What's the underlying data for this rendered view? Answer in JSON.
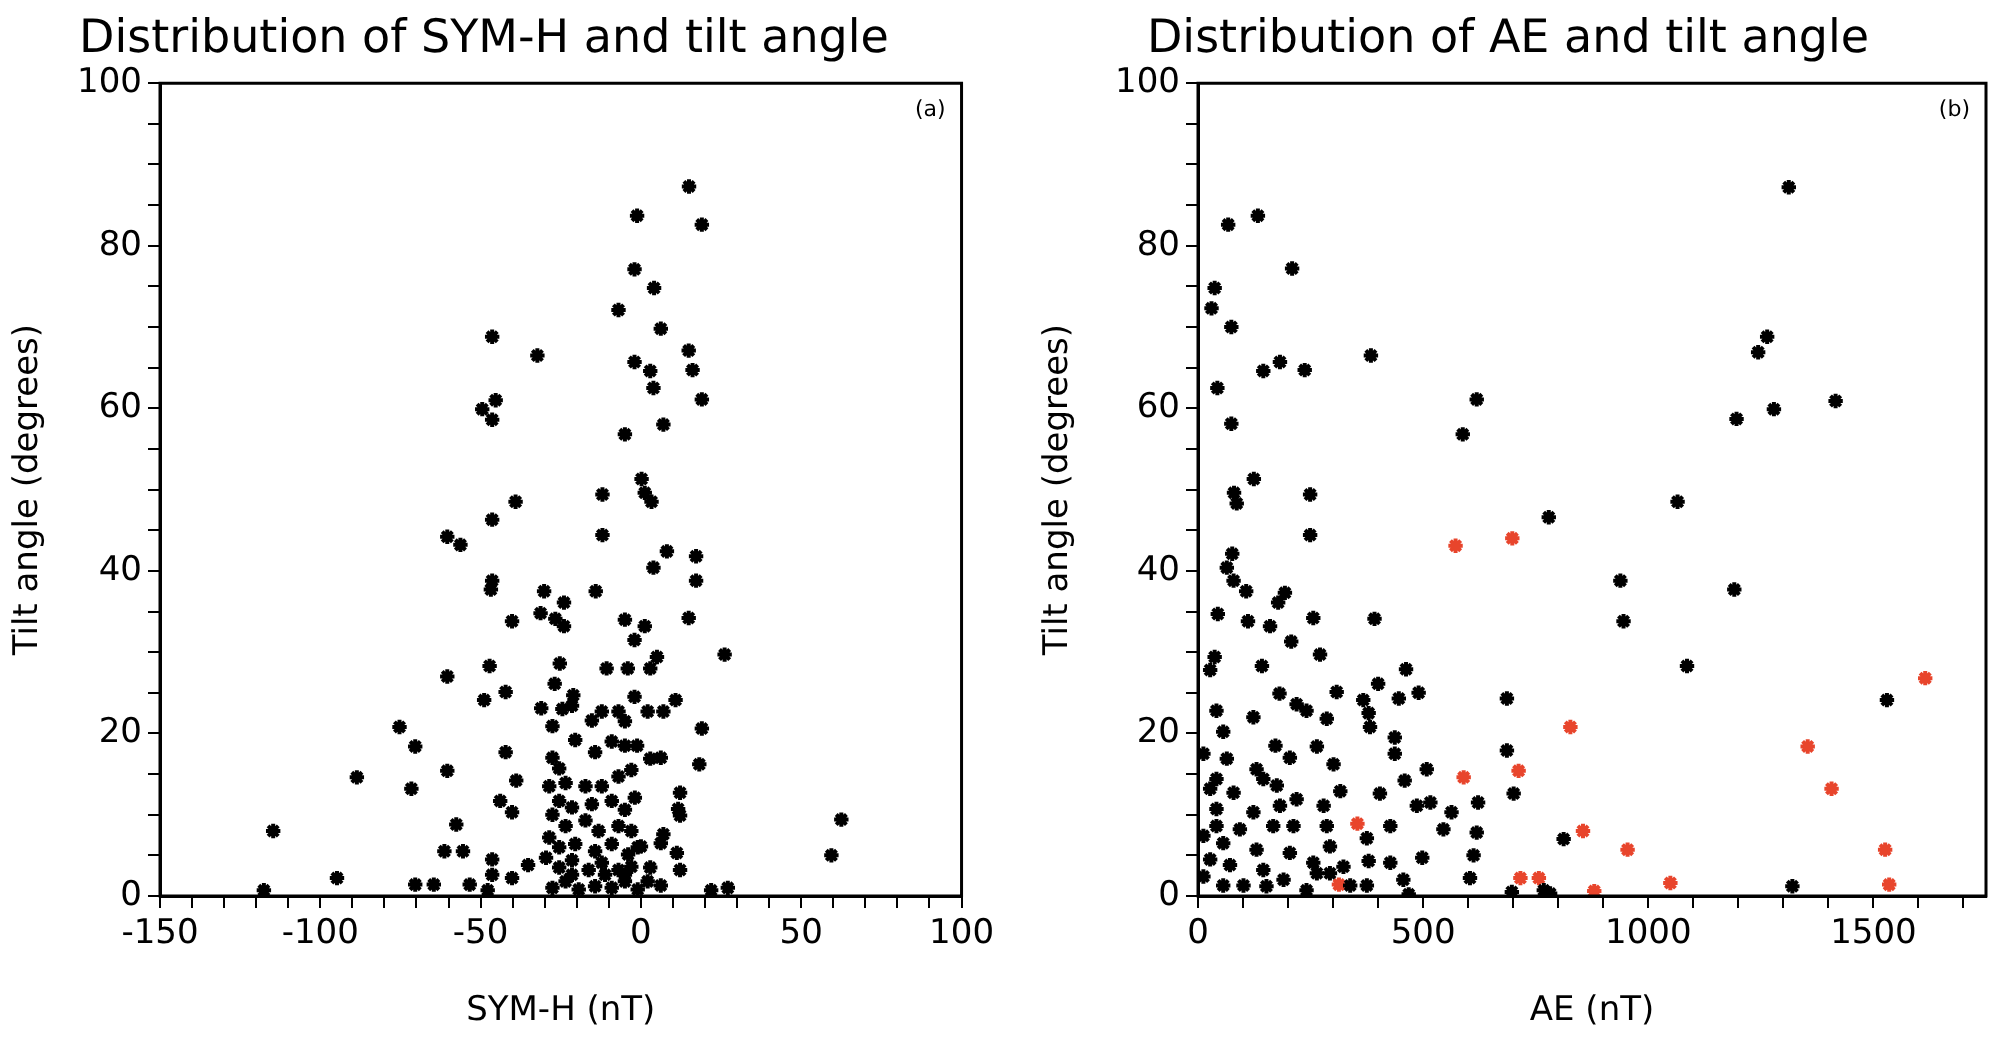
{
  "chart_data": [
    {
      "type": "scatter",
      "title": "Distribution of SYM-H and tilt angle",
      "xlabel": "SYM-H (nT)",
      "ylabel": "Tilt angle (degrees)",
      "annotations": [
        "(a)"
      ],
      "marker": "cross",
      "xlim": [
        -150,
        100
      ],
      "xticks": [
        -150,
        {
          "value": -140,
          "label": null
        },
        {
          "value": -130,
          "label": null
        },
        {
          "value": -120,
          "label": null
        },
        {
          "value": -110,
          "label": null
        },
        -100,
        {
          "value": -90,
          "label": null
        },
        {
          "value": -80,
          "label": null
        },
        {
          "value": -70,
          "label": null
        },
        {
          "value": -60,
          "label": null
        },
        -50,
        {
          "value": -40,
          "label": null
        },
        {
          "value": -30,
          "label": null
        },
        {
          "value": -20,
          "label": null
        },
        {
          "value": -10,
          "label": null
        },
        0,
        {
          "value": 10,
          "label": null
        },
        {
          "value": 20,
          "label": null
        },
        {
          "value": 30,
          "label": null
        },
        {
          "value": 40,
          "label": null
        },
        50,
        {
          "value": 60,
          "label": null
        },
        {
          "value": 70,
          "label": null
        },
        {
          "value": 80,
          "label": null
        },
        {
          "value": 90,
          "label": null
        },
        100
      ],
      "ylim": [
        0,
        100
      ],
      "yticks": [
        0,
        {
          "value": 5,
          "label": null
        },
        {
          "value": 10,
          "label": null
        },
        {
          "value": 15,
          "label": null
        },
        20,
        {
          "value": 25,
          "label": null
        },
        {
          "value": 30,
          "label": null
        },
        {
          "value": 35,
          "label": null
        },
        40,
        {
          "value": 45,
          "label": null
        },
        {
          "value": 50,
          "label": null
        },
        {
          "value": 55,
          "label": null
        },
        60,
        {
          "value": 65,
          "label": null
        },
        {
          "value": 70,
          "label": null
        },
        {
          "value": 75,
          "label": null
        },
        80,
        {
          "value": 85,
          "label": null
        },
        {
          "value": 90,
          "label": null
        },
        {
          "value": 95,
          "label": null
        },
        100
      ],
      "series": [
        {
          "color": "#000000",
          "x": [
            15,
            -1.2,
            19,
            -2,
            4.1,
            -7,
            6.2,
            -46.4,
            -32.3,
            -2,
            2.9,
            14.9,
            16.1,
            3.9,
            19,
            -45.3,
            -49.5,
            -46.4,
            7,
            -5,
            0.2,
            1.2,
            3.3,
            -12,
            -39.1,
            -46.4,
            -60.4,
            -56.3,
            -12,
            8.1,
            17.2,
            3.9,
            17.2,
            -46.4,
            -46.8,
            -30.2,
            -14.1,
            -40.2,
            -31.3,
            -26.7,
            -24,
            -24,
            -5,
            1.2,
            -2,
            5,
            14.9,
            26.1,
            -47.2,
            -25.3,
            -10.7,
            -4.1,
            2.9,
            -60.4,
            -42.2,
            -48.9,
            -26.9,
            -21.1,
            -31.1,
            -2,
            10.8,
            2.1,
            7,
            19,
            -75.3,
            -70.4,
            -42.2,
            -88.6,
            -60.4,
            -38.9,
            -71.6,
            -43.9,
            -40.2,
            -114.7,
            -57.6,
            -61.3,
            -55.5,
            -46.4,
            -46.4,
            -40.2,
            -35.2,
            -94.8,
            -117.6,
            -70.4,
            -64.6,
            -53.4,
            -47.8,
            62.5,
            59.4,
            21.9,
            27.1,
            12.2,
            11.6,
            12.2,
            7,
            6.2,
            11.2,
            12.2,
            0,
            2.9,
            6.2,
            2.9,
            6.2,
            18.2,
            -1.2,
            -27.6,
            -24.5,
            -21.5,
            -15.3,
            -12.2,
            -7,
            -5,
            -20.5,
            -14.3,
            -9.1,
            -5,
            -27.6,
            -25.5,
            -23.5,
            -17.3,
            -12.2,
            -7,
            -3,
            -28.6,
            -25.5,
            -21.5,
            -15.3,
            -9.1,
            -5,
            -1.9,
            -27.6,
            -23.5,
            -17.3,
            -13.2,
            -7,
            -3,
            -28.6,
            -25.5,
            -20.5,
            -14.3,
            -9.1,
            -4,
            -1,
            -29.6,
            -25.5,
            -21.5,
            -16.3,
            -12.2,
            -7,
            -3,
            -27.6,
            -23.5,
            -19.4,
            -14.3,
            -9.1,
            -5,
            -1,
            2.1,
            -21.5,
            -11.2,
            -5
          ],
          "values": [
            87.3,
            83.7,
            82.6,
            77.1,
            74.8,
            72.1,
            69.8,
            68.8,
            66.5,
            65.7,
            64.6,
            67.1,
            64.7,
            62.5,
            61.1,
            61,
            59.9,
            58.6,
            58,
            56.8,
            51.3,
            49.6,
            48.5,
            49.4,
            48.5,
            46.3,
            44.2,
            43.2,
            44.4,
            42.4,
            41.8,
            40.4,
            38.8,
            38.8,
            37.7,
            37.5,
            37.5,
            33.8,
            34.8,
            34.1,
            36.1,
            33.2,
            34,
            33.2,
            31.5,
            29.4,
            34.2,
            29.7,
            28.3,
            28.6,
            28,
            28,
            28,
            27,
            25.1,
            24.1,
            26.1,
            24.7,
            23.1,
            24.5,
            24.1,
            22.7,
            22.7,
            20.6,
            20.8,
            18.4,
            17.7,
            14.6,
            15.4,
            14.2,
            13.2,
            11.7,
            10.3,
            8,
            8.8,
            5.5,
            5.5,
            4.5,
            2.6,
            2.2,
            3.8,
            2.2,
            0.7,
            1.4,
            1.4,
            1.4,
            0.7,
            9.4,
            5,
            0.7,
            1,
            12.7,
            10.7,
            9.9,
            7.6,
            6.5,
            5.3,
            3.2,
            6.1,
            3.5,
            1.3,
            16.9,
            17,
            16.2,
            18.5,
            20.9,
            23,
            23.4,
            21.6,
            22.7,
            22.7,
            21.5,
            19.2,
            17.7,
            19,
            18.5,
            17,
            15.7,
            13.9,
            13.5,
            13.5,
            14.7,
            15.5,
            13.5,
            11.7,
            10.9,
            11.3,
            11.7,
            10.6,
            12.1,
            10,
            8.6,
            9.3,
            8,
            8.6,
            8,
            7.2,
            6,
            6.4,
            5.5,
            6.4,
            5.1,
            6,
            4.7,
            3.5,
            4.4,
            3.2,
            4.1,
            3.2,
            3.6,
            1,
            1.8,
            0.8,
            1.2,
            1,
            1.8,
            0.8,
            1.8,
            2.6,
            2.6,
            2.6
          ]
        }
      ]
    },
    {
      "type": "scatter",
      "title": "Distribution of AE and tilt angle",
      "xlabel": "AE (nT)",
      "ylabel": "Tilt angle (degrees)",
      "annotations": [
        "(b)"
      ],
      "marker": "cross",
      "xlim": [
        0,
        1750
      ],
      "xticks": [
        0,
        {
          "value": 100,
          "label": null
        },
        {
          "value": 200,
          "label": null
        },
        {
          "value": 300,
          "label": null
        },
        {
          "value": 400,
          "label": null
        },
        500,
        {
          "value": 600,
          "label": null
        },
        {
          "value": 700,
          "label": null
        },
        {
          "value": 800,
          "label": null
        },
        {
          "value": 900,
          "label": null
        },
        1000,
        {
          "value": 1100,
          "label": null
        },
        {
          "value": 1200,
          "label": null
        },
        {
          "value": 1300,
          "label": null
        },
        {
          "value": 1400,
          "label": null
        },
        1500,
        {
          "value": 1600,
          "label": null
        },
        {
          "value": 1700,
          "label": null
        }
      ],
      "ylim": [
        0,
        100
      ],
      "yticks": [
        0,
        {
          "value": 5,
          "label": null
        },
        {
          "value": 10,
          "label": null
        },
        {
          "value": 15,
          "label": null
        },
        20,
        {
          "value": 25,
          "label": null
        },
        {
          "value": 30,
          "label": null
        },
        {
          "value": 35,
          "label": null
        },
        40,
        {
          "value": 45,
          "label": null
        },
        {
          "value": 50,
          "label": null
        },
        {
          "value": 55,
          "label": null
        },
        60,
        {
          "value": 65,
          "label": null
        },
        {
          "value": 70,
          "label": null
        },
        {
          "value": 75,
          "label": null
        },
        80,
        {
          "value": 85,
          "label": null
        },
        {
          "value": 90,
          "label": null
        },
        {
          "value": 95,
          "label": null
        },
        100
      ],
      "series": [
        {
          "color": "#000000",
          "x": [
            1312,
            67,
            133,
            209,
            37,
            30,
            74,
            384,
            145,
            182,
            237,
            43,
            619,
            588,
            74,
            1264,
            1244,
            1416,
            1279,
            1196,
            124,
            80,
            86,
            249,
            1065,
            779,
            249,
            76,
            64,
            79,
            107,
            178,
            193,
            44,
            111,
            160,
            256,
            392,
            207,
            271,
            37,
            27,
            142,
            462,
            400,
            181,
            308,
            367,
            446,
            490,
            219,
            241,
            41,
            123,
            286,
            379,
            382,
            437,
            56,
            172,
            264,
            12,
            64,
            204,
            437,
            686,
            686,
            938,
            945,
            1191,
            1086,
            1530,
            130,
            301,
            508,
            459,
            41,
            145,
            27,
            79,
            175,
            316,
            404,
            701,
            219,
            279,
            486,
            516,
            622,
            41,
            123,
            182,
            545,
            563,
            41,
            93,
            167,
            212,
            286,
            427,
            619,
            375,
            812,
            12,
            56,
            130,
            293,
            204,
            256,
            427,
            498,
            612,
            379,
            27,
            71,
            145,
            12,
            101,
            190,
            241,
            338,
            375,
            456,
            604,
            697,
            768,
            782,
            468,
            1320,
            56,
            152,
            264,
            293,
            323
          ],
          "values": [
            87.2,
            82.6,
            83.7,
            77.2,
            74.8,
            72.3,
            70,
            66.5,
            64.6,
            65.7,
            64.7,
            62.5,
            61.1,
            56.8,
            58.1,
            68.8,
            66.9,
            60.9,
            59.9,
            58.7,
            51.3,
            49.6,
            48.3,
            49.4,
            48.5,
            46.6,
            44.4,
            42.1,
            40.4,
            38.8,
            37.5,
            36.1,
            37.3,
            34.7,
            33.8,
            33.2,
            34.2,
            34.1,
            31.3,
            29.7,
            29.4,
            27.8,
            28.3,
            27.9,
            26.1,
            24.9,
            25.1,
            24.1,
            24.3,
            25,
            23.6,
            22.8,
            22.8,
            22,
            21.8,
            22.5,
            20.8,
            19.5,
            20.2,
            18.5,
            18.4,
            17.5,
            16.9,
            17,
            17.5,
            24.3,
            17.9,
            38.8,
            33.8,
            37.7,
            28.3,
            24.1,
            15.6,
            16.2,
            15.6,
            14.2,
            14.4,
            14.4,
            13.2,
            12.7,
            13.6,
            12.9,
            12.6,
            12.6,
            11.9,
            11.1,
            11.1,
            11.5,
            11.5,
            10.7,
            10.3,
            11.1,
            8.2,
            10.3,
            8.6,
            8.2,
            8.6,
            8.6,
            8.6,
            8.6,
            7.8,
            7.1,
            7,
            7.4,
            6.5,
            5.7,
            6.1,
            5.3,
            4.1,
            4.1,
            4.7,
            5,
            4.3,
            4.5,
            3.8,
            3.2,
            2.4,
            1.3,
            2,
            0.7,
            1.3,
            1.3,
            2,
            2.2,
            0.5,
            0.7,
            0.3,
            0.2,
            1.2,
            1.3,
            1.2,
            2.8,
            2.8,
            3.6
          ]
        },
        {
          "color": "#e8452c",
          "x": [
            572,
            698,
            827,
            590,
            712,
            354,
            855,
            954,
            313,
            716,
            757,
            880,
            1049,
            1354,
            1407,
            1615,
            1526,
            1535
          ],
          "values": [
            43.1,
            44,
            20.8,
            14.6,
            15.4,
            8.9,
            8,
            5.7,
            1.4,
            2.2,
            2.2,
            0.6,
            1.6,
            18.4,
            13.2,
            26.8,
            5.7,
            1.4
          ]
        }
      ]
    }
  ]
}
